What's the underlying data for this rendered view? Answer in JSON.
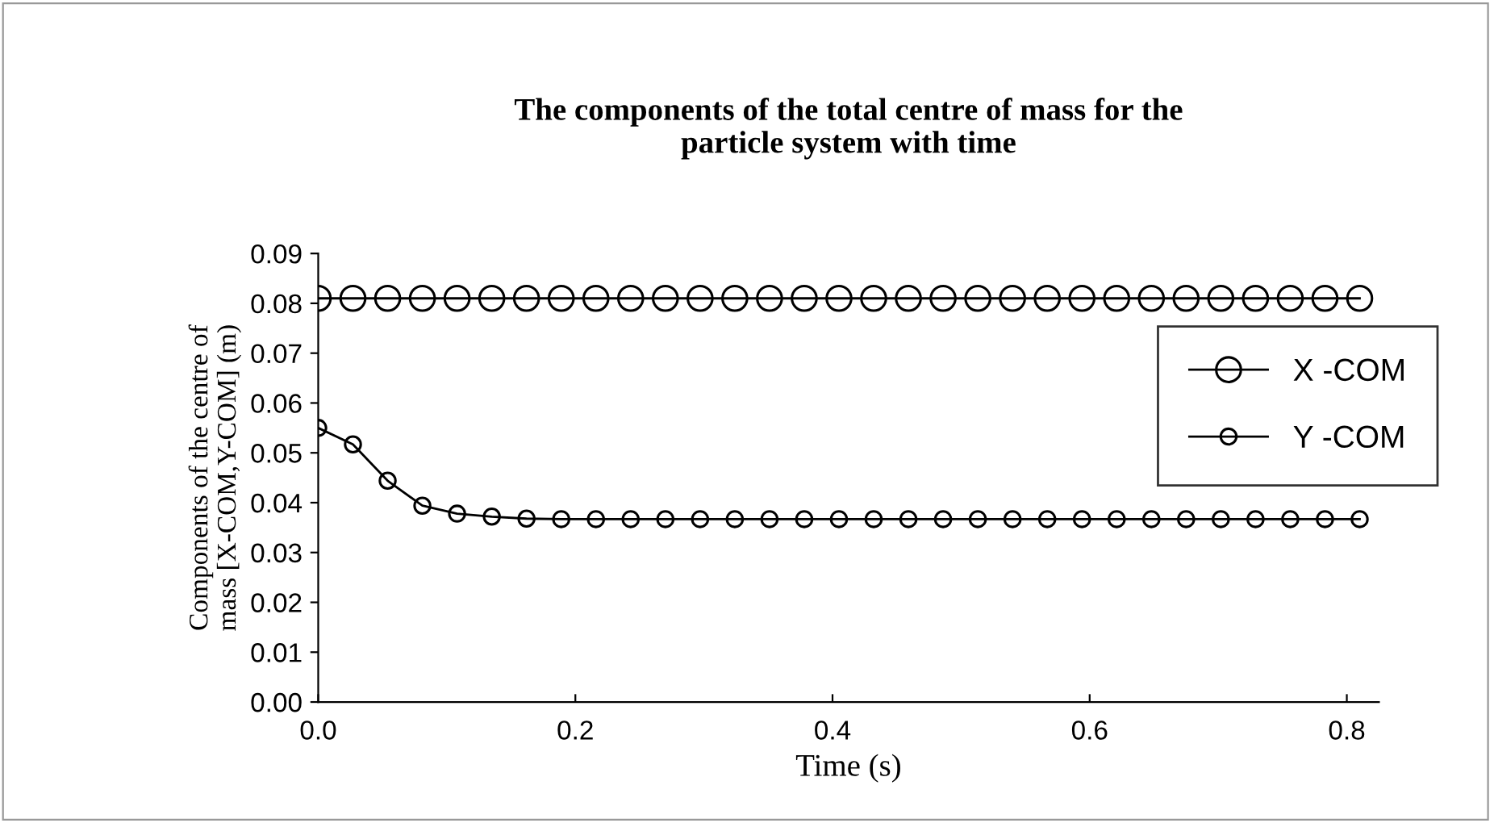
{
  "chart_data": {
    "type": "line",
    "title": "The components of the total centre of mass for the\nparticle system with time",
    "xlabel": "Time (s)",
    "ylabel": "Components of the centre of\nmass [X-COM,Y-COM] (m)",
    "x": [
      0,
      0.027,
      0.054,
      0.081,
      0.108,
      0.135,
      0.162,
      0.189,
      0.216,
      0.243,
      0.27,
      0.297,
      0.324,
      0.351,
      0.378,
      0.405,
      0.432,
      0.459,
      0.486,
      0.513,
      0.54,
      0.567,
      0.594,
      0.621,
      0.648,
      0.675,
      0.702,
      0.729,
      0.756,
      0.783,
      0.81
    ],
    "series": [
      {
        "name": "X -COM",
        "color": "#000000",
        "values": [
          0.081,
          0.081,
          0.081,
          0.081,
          0.081,
          0.081,
          0.081,
          0.081,
          0.081,
          0.081,
          0.081,
          0.081,
          0.081,
          0.081,
          0.081,
          0.081,
          0.081,
          0.081,
          0.081,
          0.081,
          0.081,
          0.081,
          0.081,
          0.081,
          0.081,
          0.081,
          0.081,
          0.081,
          0.081,
          0.081,
          0.081
        ]
      },
      {
        "name": "Y -COM",
        "color": "#000000",
        "values": [
          0.055,
          0.0517,
          0.0444,
          0.0394,
          0.0378,
          0.0372,
          0.0368,
          0.0367,
          0.0367,
          0.0367,
          0.0367,
          0.0367,
          0.0367,
          0.0367,
          0.0367,
          0.0367,
          0.0367,
          0.0367,
          0.0367,
          0.0367,
          0.0367,
          0.0367,
          0.0367,
          0.0367,
          0.0367,
          0.0367,
          0.0367,
          0.0367,
          0.0367,
          0.0367,
          0.0367
        ]
      }
    ],
    "xlim": [
      0,
      0.825
    ],
    "xticks": [
      {
        "value": 0,
        "label": "0.0"
      },
      0.2,
      0.4,
      0.6,
      0.8
    ],
    "ylim": [
      0,
      0.09
    ],
    "yticks": [
      {
        "value": 0,
        "label": "0.00"
      },
      0.01,
      0.02,
      0.03,
      0.04,
      0.05,
      0.06,
      0.07,
      0.08,
      0.09
    ],
    "marker": "circle",
    "line_style": "solid",
    "grid": false,
    "legend": "right"
  }
}
